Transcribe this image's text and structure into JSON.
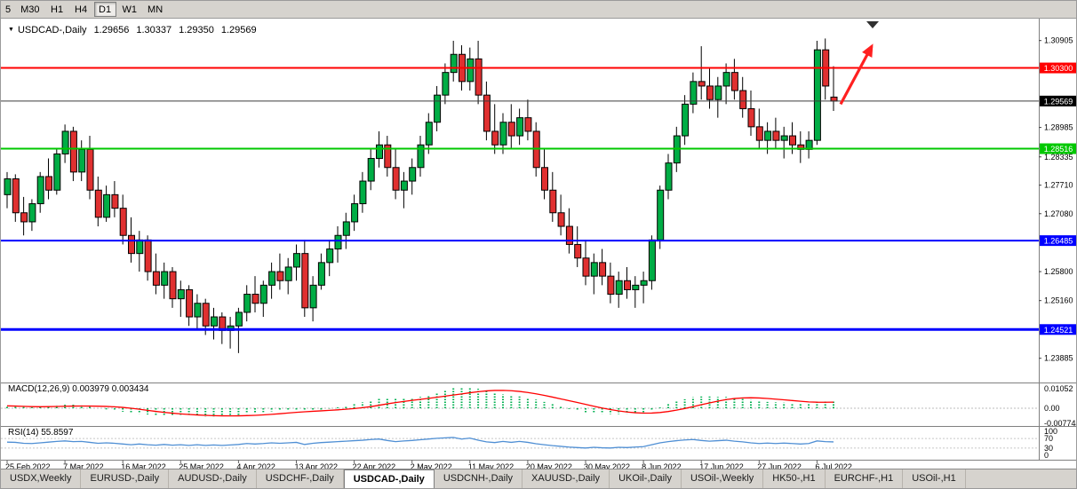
{
  "toolbar": {
    "timeframes": [
      {
        "label": "5",
        "active": false,
        "partial": true
      },
      {
        "label": "M30",
        "active": false
      },
      {
        "label": "H1",
        "active": false
      },
      {
        "label": "H4",
        "active": false
      },
      {
        "label": "D1",
        "active": true
      },
      {
        "label": "W1",
        "active": false
      },
      {
        "label": "MN",
        "active": false
      }
    ]
  },
  "chart": {
    "title_symbol": "USDCAD-,Daily",
    "ohlc": {
      "open": "1.29656",
      "high": "1.30337",
      "low": "1.29350",
      "close": "1.29569"
    }
  },
  "chart_data": {
    "type": "candlestick",
    "symbol": "USDCAD",
    "timeframe": "Daily",
    "title": "USDCAD-,Daily 1.29656 1.30337 1.29350 1.29569",
    "x_labels": [
      "25 Feb 2022",
      "7 Mar 2022",
      "16 Mar 2022",
      "25 Mar 2022",
      "4 Apr 2022",
      "13 Apr 2022",
      "22 Apr 2022",
      "2 May 2022",
      "11 May 2022",
      "20 May 2022",
      "30 May 2022",
      "8 Jun 2022",
      "17 Jun 2022",
      "27 Jun 2022",
      "6 Jul 2022"
    ],
    "x_label_step": 7,
    "ylim": [
      1.2335,
      1.3135
    ],
    "grid": false,
    "y_axis_ticks": [
      "1.30905",
      "1.28985",
      "1.28335",
      "1.27710",
      "1.27080",
      "1.25800",
      "1.25160",
      "1.23885"
    ],
    "colors": {
      "up": "#00AD45",
      "down": "#E03030",
      "wick": "#000000",
      "outline": "#000000"
    },
    "candles": [
      [
        1.275,
        1.28,
        1.272,
        1.2785
      ],
      [
        1.2785,
        1.2795,
        1.269,
        1.271
      ],
      [
        1.271,
        1.2745,
        1.266,
        1.269
      ],
      [
        1.269,
        1.274,
        1.267,
        1.273
      ],
      [
        1.273,
        1.28,
        1.271,
        1.279
      ],
      [
        1.279,
        1.283,
        1.274,
        1.276
      ],
      [
        1.276,
        1.285,
        1.275,
        1.284
      ],
      [
        1.284,
        1.2905,
        1.282,
        1.289
      ],
      [
        1.289,
        1.29,
        1.278,
        1.28
      ],
      [
        1.28,
        1.287,
        1.278,
        1.285
      ],
      [
        1.285,
        1.288,
        1.274,
        1.276
      ],
      [
        1.276,
        1.279,
        1.268,
        1.27
      ],
      [
        1.27,
        1.277,
        1.269,
        1.275
      ],
      [
        1.275,
        1.278,
        1.27,
        1.272
      ],
      [
        1.272,
        1.275,
        1.264,
        1.266
      ],
      [
        1.266,
        1.27,
        1.26,
        1.262
      ],
      [
        1.262,
        1.267,
        1.258,
        1.265
      ],
      [
        1.265,
        1.266,
        1.256,
        1.258
      ],
      [
        1.258,
        1.262,
        1.253,
        1.255
      ],
      [
        1.255,
        1.26,
        1.252,
        1.258
      ],
      [
        1.258,
        1.259,
        1.25,
        1.252
      ],
      [
        1.252,
        1.256,
        1.248,
        1.254
      ],
      [
        1.254,
        1.255,
        1.246,
        1.248
      ],
      [
        1.248,
        1.253,
        1.245,
        1.251
      ],
      [
        1.251,
        1.252,
        1.244,
        1.246
      ],
      [
        1.246,
        1.25,
        1.243,
        1.248
      ],
      [
        1.248,
        1.249,
        1.242,
        1.245
      ],
      [
        1.245,
        1.248,
        1.241,
        1.246
      ],
      [
        1.246,
        1.25,
        1.24,
        1.249
      ],
      [
        1.249,
        1.255,
        1.247,
        1.253
      ],
      [
        1.253,
        1.257,
        1.249,
        1.251
      ],
      [
        1.251,
        1.256,
        1.248,
        1.255
      ],
      [
        1.255,
        1.26,
        1.252,
        1.258
      ],
      [
        1.258,
        1.262,
        1.254,
        1.256
      ],
      [
        1.256,
        1.261,
        1.253,
        1.259
      ],
      [
        1.259,
        1.264,
        1.256,
        1.262
      ],
      [
        1.262,
        1.265,
        1.248,
        1.25
      ],
      [
        1.25,
        1.257,
        1.247,
        1.255
      ],
      [
        1.255,
        1.262,
        1.254,
        1.26
      ],
      [
        1.26,
        1.265,
        1.257,
        1.263
      ],
      [
        1.263,
        1.268,
        1.26,
        1.266
      ],
      [
        1.266,
        1.271,
        1.263,
        1.269
      ],
      [
        1.269,
        1.275,
        1.267,
        1.273
      ],
      [
        1.273,
        1.28,
        1.271,
        1.278
      ],
      [
        1.278,
        1.285,
        1.276,
        1.283
      ],
      [
        1.283,
        1.289,
        1.281,
        1.286
      ],
      [
        1.286,
        1.288,
        1.279,
        1.281
      ],
      [
        1.281,
        1.285,
        1.274,
        1.276
      ],
      [
        1.276,
        1.28,
        1.272,
        1.278
      ],
      [
        1.278,
        1.283,
        1.275,
        1.281
      ],
      [
        1.281,
        1.288,
        1.279,
        1.286
      ],
      [
        1.286,
        1.293,
        1.284,
        1.291
      ],
      [
        1.291,
        1.299,
        1.289,
        1.297
      ],
      [
        1.297,
        1.304,
        1.295,
        1.302
      ],
      [
        1.302,
        1.309,
        1.3,
        1.306
      ],
      [
        1.306,
        1.308,
        1.298,
        1.3
      ],
      [
        1.3,
        1.3075,
        1.298,
        1.305
      ],
      [
        1.305,
        1.309,
        1.295,
        1.297
      ],
      [
        1.297,
        1.3,
        1.287,
        1.289
      ],
      [
        1.289,
        1.295,
        1.284,
        1.286
      ],
      [
        1.286,
        1.293,
        1.284,
        1.291
      ],
      [
        1.291,
        1.295,
        1.285,
        1.288
      ],
      [
        1.288,
        1.294,
        1.286,
        1.292
      ],
      [
        1.292,
        1.296,
        1.287,
        1.289
      ],
      [
        1.289,
        1.291,
        1.279,
        1.281
      ],
      [
        1.281,
        1.285,
        1.274,
        1.276
      ],
      [
        1.276,
        1.28,
        1.269,
        1.271
      ],
      [
        1.271,
        1.275,
        1.266,
        1.268
      ],
      [
        1.268,
        1.272,
        1.262,
        1.264
      ],
      [
        1.264,
        1.268,
        1.259,
        1.261
      ],
      [
        1.261,
        1.265,
        1.255,
        1.257
      ],
      [
        1.257,
        1.262,
        1.253,
        1.26
      ],
      [
        1.26,
        1.263,
        1.255,
        1.257
      ],
      [
        1.257,
        1.26,
        1.251,
        1.253
      ],
      [
        1.253,
        1.258,
        1.25,
        1.256
      ],
      [
        1.256,
        1.259,
        1.252,
        1.254
      ],
      [
        1.254,
        1.257,
        1.25,
        1.255
      ],
      [
        1.255,
        1.258,
        1.251,
        1.256
      ],
      [
        1.256,
        1.266,
        1.254,
        1.265
      ],
      [
        1.265,
        1.277,
        1.263,
        1.276
      ],
      [
        1.276,
        1.284,
        1.274,
        1.282
      ],
      [
        1.282,
        1.29,
        1.28,
        1.288
      ],
      [
        1.288,
        1.297,
        1.286,
        1.295
      ],
      [
        1.295,
        1.302,
        1.293,
        1.3
      ],
      [
        1.3,
        1.3078,
        1.296,
        1.299
      ],
      [
        1.299,
        1.303,
        1.294,
        1.296
      ],
      [
        1.296,
        1.301,
        1.292,
        1.299
      ],
      [
        1.299,
        1.304,
        1.295,
        1.302
      ],
      [
        1.302,
        1.305,
        1.296,
        1.298
      ],
      [
        1.298,
        1.301,
        1.292,
        1.294
      ],
      [
        1.294,
        1.298,
        1.288,
        1.29
      ],
      [
        1.29,
        1.294,
        1.285,
        1.287
      ],
      [
        1.287,
        1.291,
        1.284,
        1.289
      ],
      [
        1.289,
        1.292,
        1.285,
        1.287
      ],
      [
        1.287,
        1.29,
        1.283,
        1.288
      ],
      [
        1.288,
        1.291,
        1.284,
        1.286
      ],
      [
        1.286,
        1.289,
        1.282,
        1.285
      ],
      [
        1.285,
        1.289,
        1.283,
        1.287
      ],
      [
        1.287,
        1.309,
        1.286,
        1.307
      ],
      [
        1.307,
        1.3095,
        1.296,
        1.299
      ],
      [
        1.29656,
        1.30337,
        1.2935,
        1.29569
      ]
    ],
    "levels": [
      {
        "price": 1.303,
        "label": "1.30300",
        "color": "#FF0000",
        "width": 2
      },
      {
        "price": 1.28516,
        "label": "1.28516",
        "color": "#00C800",
        "width": 2
      },
      {
        "price": 1.26485,
        "label": "1.26485",
        "color": "#0000FF",
        "width": 2
      },
      {
        "price": 1.24521,
        "label": "1.24521",
        "color": "#0000FF",
        "width": 3
      }
    ],
    "current_price": {
      "value": 1.29569,
      "label": "1.29569",
      "line_color": "#3c3c3c",
      "badge_color": "#000000"
    },
    "indicators": {
      "macd": {
        "label": "MACD(12,26,9)",
        "value_main": "0.003979",
        "value_signal": "0.003434",
        "axis_ticks": [
          "0.01052",
          "0.00",
          "-0.007744"
        ],
        "ylim": [
          -0.0082,
          0.0118
        ],
        "signal_period": 9,
        "histogram_color": "#00B050",
        "signal_color": "#FF0000",
        "histogram": [
          0.0012,
          0.001,
          0.0006,
          0.0004,
          0.0006,
          0.001,
          0.0014,
          0.0018,
          0.0018,
          0.0014,
          0.0008,
          0.0,
          -0.0006,
          -0.0012,
          -0.0018,
          -0.0024,
          -0.0028,
          -0.0032,
          -0.0035,
          -0.0036,
          -0.0038,
          -0.0038,
          -0.004,
          -0.004,
          -0.0042,
          -0.0042,
          -0.004,
          -0.0038,
          -0.0034,
          -0.0028,
          -0.0024,
          -0.002,
          -0.0016,
          -0.0012,
          -0.001,
          -0.0008,
          -0.0012,
          -0.0012,
          -0.0008,
          -0.0002,
          0.0004,
          0.0012,
          0.002,
          0.003,
          0.004,
          0.005,
          0.0054,
          0.0052,
          0.005,
          0.0052,
          0.0058,
          0.0068,
          0.008,
          0.0092,
          0.0102,
          0.0104,
          0.0105,
          0.01,
          0.009,
          0.0078,
          0.007,
          0.0064,
          0.006,
          0.0054,
          0.0044,
          0.0032,
          0.002,
          0.0008,
          -0.0004,
          -0.0014,
          -0.0022,
          -0.0026,
          -0.0028,
          -0.003,
          -0.003,
          -0.0028,
          -0.0026,
          -0.0022,
          -0.0012,
          0.0004,
          0.002,
          0.0034,
          0.0046,
          0.0056,
          0.006,
          0.006,
          0.0058,
          0.0058,
          0.0054,
          0.0048,
          0.0042,
          0.0036,
          0.0032,
          0.003,
          0.0028,
          0.0026,
          0.0024,
          0.0024,
          0.0036,
          0.004,
          0.003979
        ]
      },
      "rsi": {
        "label": "RSI(14)",
        "value": "55.8597",
        "axis_ticks": [
          100,
          70,
          30,
          0
        ],
        "guide_levels": [
          70,
          30
        ],
        "ylim": [
          -12,
          112
        ],
        "line_color": "#4F8FD4",
        "values": [
          55,
          54,
          50,
          49,
          52,
          55,
          58,
          60,
          57,
          58,
          54,
          50,
          52,
          50,
          47,
          44,
          47,
          44,
          42,
          45,
          42,
          44,
          41,
          44,
          41,
          43,
          41,
          43,
          45,
          49,
          47,
          49,
          52,
          50,
          52,
          54,
          45,
          50,
          53,
          55,
          57,
          59,
          61,
          63,
          66,
          68,
          62,
          57,
          60,
          62,
          65,
          68,
          71,
          73,
          75,
          68,
          72,
          63,
          56,
          53,
          58,
          54,
          58,
          54,
          48,
          44,
          40,
          37,
          34,
          32,
          30,
          33,
          31,
          30,
          33,
          32,
          34,
          36,
          44,
          52,
          57,
          61,
          64,
          66,
          62,
          59,
          61,
          63,
          59,
          56,
          52,
          49,
          51,
          49,
          51,
          49,
          47,
          49,
          60,
          57,
          55.8597
        ]
      }
    },
    "annotations": {
      "trend_arrow": {
        "color": "#FF2020",
        "from_price": 1.295,
        "to_price": 1.3078,
        "direction": "up"
      },
      "shift_marker": true
    }
  },
  "tabs": {
    "items": [
      {
        "label": "USDX,Weekly",
        "active": false
      },
      {
        "label": "EURUSD-,Daily",
        "active": false
      },
      {
        "label": "AUDUSD-,Daily",
        "active": false
      },
      {
        "label": "USDCHF-,Daily",
        "active": false
      },
      {
        "label": "USDCAD-,Daily",
        "active": true
      },
      {
        "label": "USDCNH-,Daily",
        "active": false
      },
      {
        "label": "XAUUSD-,Daily",
        "active": false
      },
      {
        "label": "UKOil-,Daily",
        "active": false
      },
      {
        "label": "USOil-,Weekly",
        "active": false
      },
      {
        "label": "HK50-,H1",
        "active": false
      },
      {
        "label": "EURCHF-,H1",
        "active": false
      },
      {
        "label": "USOil-,H1",
        "active": false
      }
    ]
  }
}
